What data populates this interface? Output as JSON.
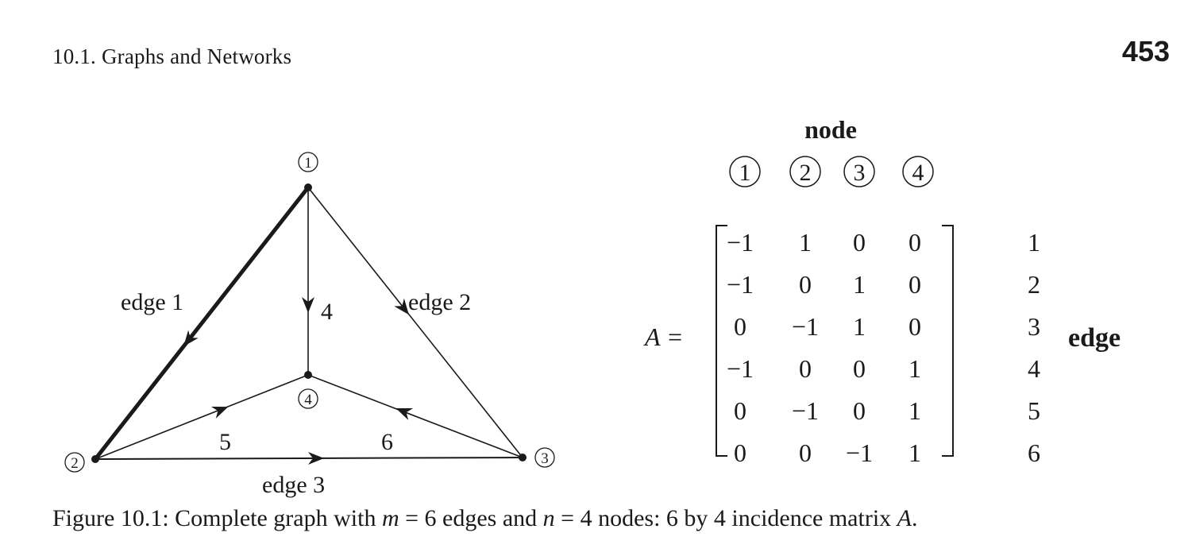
{
  "header": {
    "section": "10.1.  Graphs and Networks",
    "page_number": "453"
  },
  "graph": {
    "nodes": [
      "1",
      "2",
      "3",
      "4"
    ],
    "edge_labels": {
      "e1": "edge 1",
      "e2": "edge 2",
      "e3": "edge 3",
      "e4": "4",
      "e5": "5",
      "e6": "6"
    }
  },
  "matrix": {
    "header_label": "node",
    "column_labels": [
      "1",
      "2",
      "3",
      "4"
    ],
    "name": "A =",
    "rows": [
      [
        "−1",
        "1",
        "0",
        "0"
      ],
      [
        "−1",
        "0",
        "1",
        "0"
      ],
      [
        "0",
        "−1",
        "1",
        "0"
      ],
      [
        "−1",
        "0",
        "0",
        "1"
      ],
      [
        "0",
        "−1",
        "0",
        "1"
      ],
      [
        "0",
        "0",
        "−1",
        "1"
      ]
    ],
    "row_labels": [
      "1",
      "2",
      "3",
      "4",
      "5",
      "6"
    ],
    "side_label": "edge"
  },
  "caption": {
    "prefix": "Figure 10.1: Complete graph with ",
    "m_var": "m",
    "m_eq": " = 6 edges and ",
    "n_var": "n",
    "n_eq": " = 4 nodes: 6 by 4 incidence matrix ",
    "a_var": "A",
    "suffix": "."
  }
}
